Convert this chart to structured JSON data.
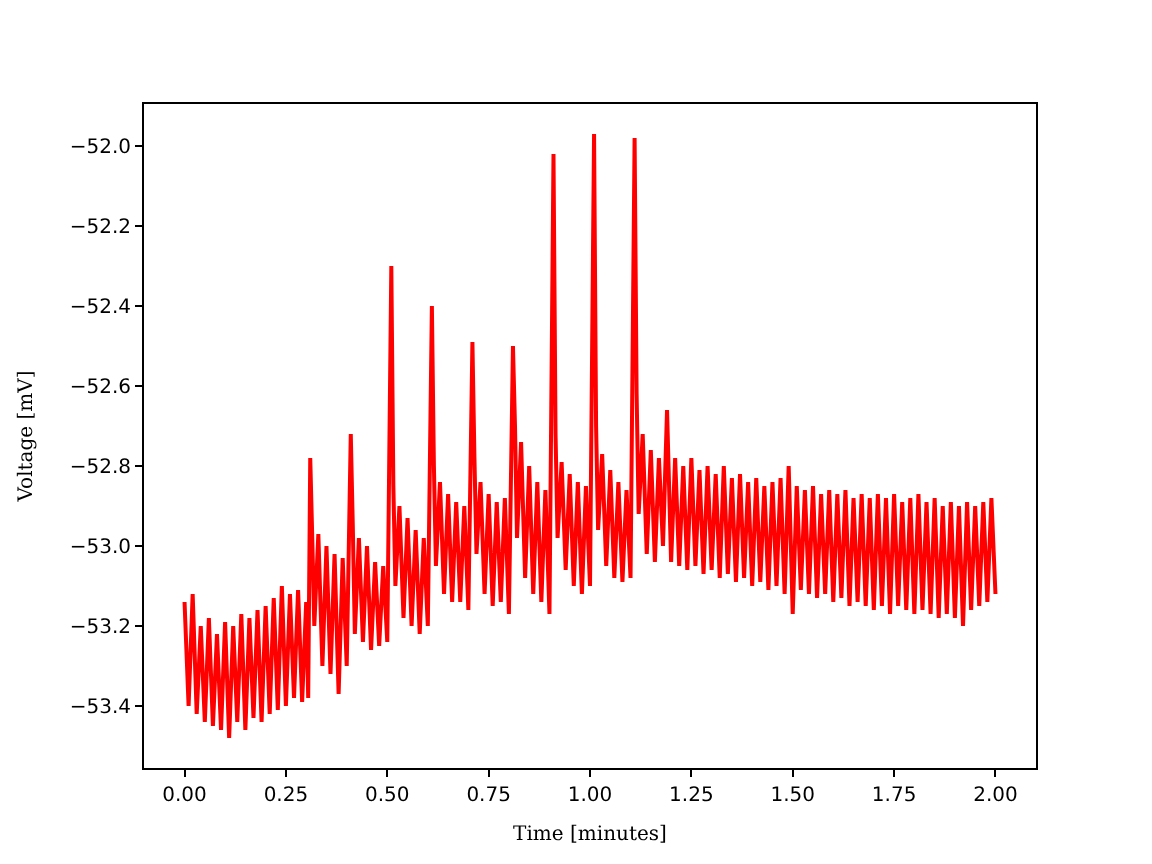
{
  "chart_data": {
    "type": "line",
    "xlabel": "Time [minutes]",
    "ylabel": "Voltage [mV]",
    "x": [
      0.0,
      0.01,
      0.02,
      0.03,
      0.04,
      0.05,
      0.06,
      0.07,
      0.08,
      0.09,
      0.1,
      0.11,
      0.12,
      0.13,
      0.14,
      0.15,
      0.16,
      0.17,
      0.18,
      0.19,
      0.2,
      0.21,
      0.22,
      0.23,
      0.24,
      0.25,
      0.26,
      0.27,
      0.28,
      0.29,
      0.3,
      0.305,
      0.31,
      0.315,
      0.32,
      0.33,
      0.34,
      0.35,
      0.36,
      0.37,
      0.38,
      0.39,
      0.4,
      0.41,
      0.415,
      0.42,
      0.43,
      0.44,
      0.45,
      0.46,
      0.47,
      0.48,
      0.49,
      0.5,
      0.51,
      0.515,
      0.52,
      0.53,
      0.54,
      0.55,
      0.56,
      0.57,
      0.58,
      0.59,
      0.6,
      0.61,
      0.615,
      0.62,
      0.63,
      0.64,
      0.65,
      0.66,
      0.67,
      0.68,
      0.69,
      0.7,
      0.71,
      0.715,
      0.72,
      0.73,
      0.74,
      0.75,
      0.76,
      0.77,
      0.78,
      0.79,
      0.8,
      0.81,
      0.815,
      0.82,
      0.83,
      0.84,
      0.85,
      0.86,
      0.87,
      0.88,
      0.89,
      0.9,
      0.91,
      0.915,
      0.92,
      0.93,
      0.94,
      0.95,
      0.96,
      0.97,
      0.98,
      0.99,
      1.0,
      1.01,
      1.015,
      1.02,
      1.03,
      1.04,
      1.05,
      1.06,
      1.07,
      1.08,
      1.09,
      1.1,
      1.11,
      1.115,
      1.12,
      1.13,
      1.14,
      1.15,
      1.16,
      1.17,
      1.18,
      1.19,
      1.2,
      1.21,
      1.22,
      1.23,
      1.24,
      1.25,
      1.26,
      1.27,
      1.28,
      1.29,
      1.3,
      1.31,
      1.32,
      1.33,
      1.34,
      1.35,
      1.36,
      1.37,
      1.38,
      1.39,
      1.4,
      1.41,
      1.42,
      1.43,
      1.44,
      1.45,
      1.46,
      1.47,
      1.48,
      1.49,
      1.5,
      1.51,
      1.52,
      1.53,
      1.54,
      1.55,
      1.56,
      1.57,
      1.58,
      1.59,
      1.6,
      1.61,
      1.62,
      1.63,
      1.64,
      1.65,
      1.66,
      1.67,
      1.68,
      1.69,
      1.7,
      1.71,
      1.72,
      1.73,
      1.74,
      1.75,
      1.76,
      1.77,
      1.78,
      1.79,
      1.8,
      1.81,
      1.82,
      1.83,
      1.84,
      1.85,
      1.86,
      1.87,
      1.88,
      1.89,
      1.9,
      1.91,
      1.92,
      1.93,
      1.94,
      1.95,
      1.96,
      1.97,
      1.98,
      1.99,
      2.0
    ],
    "series": [
      {
        "color": "#ff0000",
        "values": [
          -53.14,
          -53.4,
          -53.12,
          -53.42,
          -53.2,
          -53.44,
          -53.18,
          -53.45,
          -53.22,
          -53.46,
          -53.19,
          -53.48,
          -53.2,
          -53.44,
          -53.17,
          -53.46,
          -53.18,
          -53.43,
          -53.16,
          -53.44,
          -53.15,
          -53.42,
          -53.13,
          -53.41,
          -53.1,
          -53.4,
          -53.12,
          -53.38,
          -53.11,
          -53.39,
          -53.14,
          -53.38,
          -52.78,
          -52.98,
          -53.2,
          -52.97,
          -53.3,
          -53.0,
          -53.32,
          -53.02,
          -53.37,
          -53.03,
          -53.3,
          -52.72,
          -52.95,
          -53.22,
          -52.98,
          -53.24,
          -53.0,
          -53.26,
          -53.04,
          -53.25,
          -53.05,
          -53.24,
          -52.3,
          -52.85,
          -53.1,
          -52.9,
          -53.18,
          -52.93,
          -53.2,
          -52.96,
          -53.22,
          -52.98,
          -53.2,
          -52.4,
          -52.8,
          -53.05,
          -52.84,
          -53.12,
          -52.87,
          -53.14,
          -52.89,
          -53.14,
          -52.9,
          -53.16,
          -52.49,
          -52.78,
          -53.02,
          -52.84,
          -53.12,
          -52.87,
          -53.15,
          -52.89,
          -53.14,
          -52.88,
          -53.17,
          -52.5,
          -52.7,
          -52.98,
          -52.74,
          -53.08,
          -52.8,
          -53.12,
          -52.84,
          -53.14,
          -52.86,
          -53.17,
          -52.02,
          -52.72,
          -52.98,
          -52.79,
          -53.06,
          -52.82,
          -53.1,
          -52.84,
          -53.12,
          -52.85,
          -53.1,
          -51.97,
          -52.7,
          -52.96,
          -52.77,
          -53.05,
          -52.81,
          -53.08,
          -52.84,
          -53.09,
          -52.86,
          -53.08,
          -51.98,
          -52.62,
          -52.92,
          -52.72,
          -53.02,
          -52.76,
          -53.04,
          -52.78,
          -53.0,
          -52.66,
          -53.04,
          -52.78,
          -53.05,
          -52.8,
          -53.06,
          -52.78,
          -53.05,
          -52.81,
          -53.07,
          -52.8,
          -53.06,
          -52.82,
          -53.08,
          -52.8,
          -53.07,
          -52.83,
          -53.09,
          -52.82,
          -53.08,
          -52.84,
          -53.1,
          -52.83,
          -53.09,
          -52.85,
          -53.11,
          -52.84,
          -53.1,
          -52.83,
          -53.12,
          -52.8,
          -53.17,
          -52.85,
          -53.11,
          -52.86,
          -53.12,
          -52.85,
          -53.13,
          -52.87,
          -53.12,
          -52.86,
          -53.14,
          -52.87,
          -53.13,
          -52.86,
          -53.15,
          -52.88,
          -53.14,
          -52.87,
          -53.15,
          -52.88,
          -53.16,
          -52.87,
          -53.15,
          -52.88,
          -53.17,
          -52.87,
          -53.15,
          -52.89,
          -53.16,
          -52.88,
          -53.17,
          -52.87,
          -53.16,
          -52.89,
          -53.17,
          -52.88,
          -53.18,
          -52.9,
          -53.17,
          -52.89,
          -53.18,
          -52.9,
          -53.2,
          -52.89,
          -53.16,
          -52.9,
          -53.15,
          -52.89,
          -53.14,
          -52.88,
          -53.12
        ]
      }
    ],
    "xlim": [
      -0.1,
      2.1
    ],
    "ylim": [
      -53.555,
      -51.895
    ],
    "xticks": [
      {
        "value": 0,
        "label": "0.00"
      },
      {
        "value": 0.25,
        "label": "0.25"
      },
      {
        "value": 0.5,
        "label": "0.50"
      },
      {
        "value": 0.75,
        "label": "0.75"
      },
      {
        "value": 1,
        "label": "1.00"
      },
      {
        "value": 1.25,
        "label": "1.25"
      },
      {
        "value": 1.5,
        "label": "1.50"
      },
      {
        "value": 1.75,
        "label": "1.75"
      },
      {
        "value": 2,
        "label": "2.00"
      }
    ],
    "yticks": [
      {
        "value": -53.4,
        "label": "−53.4"
      },
      {
        "value": -53.2,
        "label": "−53.2"
      },
      {
        "value": -53.0,
        "label": "−53.0"
      },
      {
        "value": -52.8,
        "label": "−52.8"
      },
      {
        "value": -52.6,
        "label": "−52.6"
      },
      {
        "value": -52.4,
        "label": "−52.4"
      },
      {
        "value": -52.2,
        "label": "−52.2"
      },
      {
        "value": -52.0,
        "label": "−52.0"
      }
    ]
  }
}
